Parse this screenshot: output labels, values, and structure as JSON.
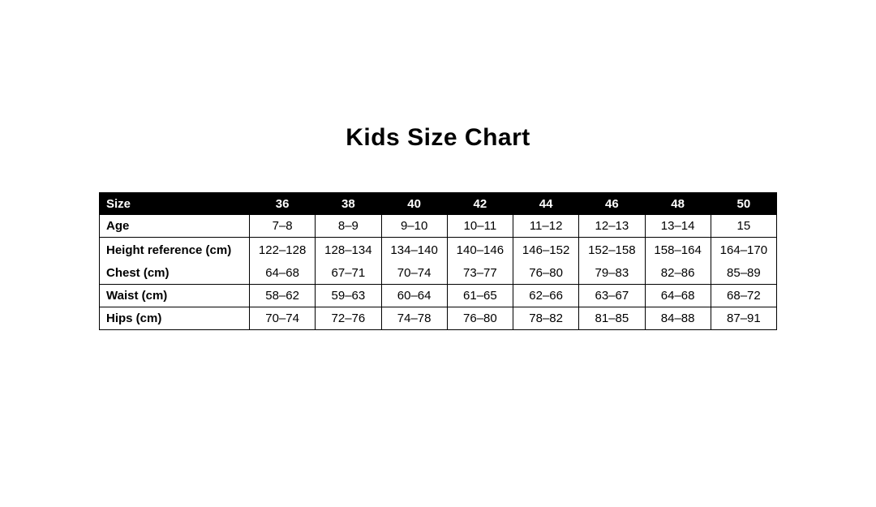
{
  "chart_data": {
    "type": "table",
    "title": "Kids Size Chart",
    "columns": [
      "Size",
      "36",
      "38",
      "40",
      "42",
      "44",
      "46",
      "48",
      "50"
    ],
    "rows": [
      {
        "label": "Age",
        "values": [
          "7–8",
          "8–9",
          "9–10",
          "10–11",
          "11–12",
          "12–13",
          "13–14",
          "15"
        ]
      },
      {
        "label": "Height reference (cm)",
        "values": [
          "122–128",
          "128–134",
          "134–140",
          "140–146",
          "146–152",
          "152–158",
          "158–164",
          "164–170"
        ]
      },
      {
        "label": "Chest (cm)",
        "values": [
          "64–68",
          "67–71",
          "70–74",
          "73–77",
          "76–80",
          "79–83",
          "82–86",
          "85–89"
        ]
      },
      {
        "label": "Waist (cm)",
        "values": [
          "58–62",
          "59–63",
          "60–64",
          "61–65",
          "62–66",
          "63–67",
          "64–68",
          "68–72"
        ]
      },
      {
        "label": "Hips (cm)",
        "values": [
          "70–74",
          "72–76",
          "74–78",
          "76–80",
          "78–82",
          "81–85",
          "84–88",
          "87–91"
        ]
      }
    ],
    "row_groups": [
      [
        0
      ],
      [
        1,
        2
      ],
      [
        3
      ],
      [
        4
      ]
    ],
    "layout_hints": {
      "header_style": "solid black bar, white bold text",
      "first_column_align": "left",
      "value_align": "center",
      "grid": true
    },
    "colors": {
      "header_bg": "#000000",
      "header_text": "#ffffff",
      "body_text": "#000000",
      "border": "#000000",
      "page_bg": "#ffffff"
    }
  }
}
